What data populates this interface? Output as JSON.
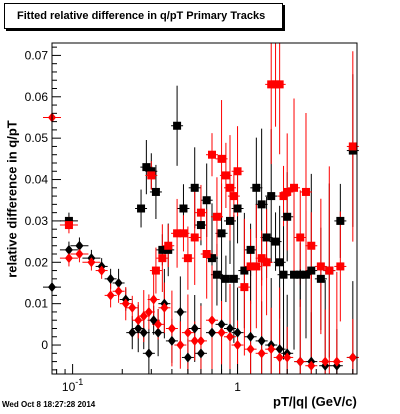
{
  "chart_data": {
    "type": "scatter",
    "title": "Fitted relative difference in q/pT  Primary Tracks",
    "xlabel": "pT/|q| (GeV/c)",
    "ylabel": "relative difference in q/pT",
    "x_scale": "log",
    "xlim": [
      0.075,
      5.3
    ],
    "ylim": [
      -0.007,
      0.073
    ],
    "x_tick_labels": [
      {
        "value": 0.1,
        "label": "10^-1"
      },
      {
        "value": 1,
        "label": "1"
      }
    ],
    "y_ticks": [
      0,
      0.01,
      0.02,
      0.03,
      0.04,
      0.05,
      0.06,
      0.07
    ],
    "y_tick_labels": [
      "0",
      "0.01",
      "0.02",
      "0.03",
      "0.04",
      "0.05",
      "0.06",
      "0.07"
    ],
    "series": [
      {
        "color": "#000000",
        "marker": "square",
        "points": [
          [
            0.095,
            0.03
          ],
          [
            0.26,
            0.033
          ],
          [
            0.28,
            0.043
          ],
          [
            0.3,
            0.042
          ],
          [
            0.32,
            0.037
          ],
          [
            0.35,
            0.023
          ],
          [
            0.38,
            0.023
          ],
          [
            0.43,
            0.053
          ],
          [
            0.47,
            0.033
          ],
          [
            0.55,
            0.038
          ],
          [
            0.6,
            0.029
          ],
          [
            0.65,
            0.035
          ],
          [
            0.7,
            0.021
          ],
          [
            0.75,
            0.017
          ],
          [
            0.8,
            0.027
          ],
          [
            0.85,
            0.016
          ],
          [
            0.9,
            0.03
          ],
          [
            0.95,
            0.016
          ],
          [
            1.0,
            0.033
          ],
          [
            1.1,
            0.018
          ],
          [
            1.2,
            0.023
          ],
          [
            1.3,
            0.038
          ],
          [
            1.4,
            0.034
          ],
          [
            1.5,
            0.026
          ],
          [
            1.6,
            0.036
          ],
          [
            1.7,
            0.025
          ],
          [
            1.8,
            0.02
          ],
          [
            1.9,
            0.017
          ],
          [
            2.0,
            0.031
          ],
          [
            2.2,
            0.017
          ],
          [
            2.4,
            0.017
          ],
          [
            2.6,
            0.017
          ],
          [
            2.8,
            0.018
          ],
          [
            3.2,
            0.016
          ],
          [
            3.6,
            0.018
          ],
          [
            4.2,
            0.03
          ],
          [
            5.0,
            0.047
          ]
        ]
      },
      {
        "color": "#ff0000",
        "marker": "square",
        "points": [
          [
            0.095,
            0.029
          ],
          [
            0.3,
            0.041
          ],
          [
            0.32,
            0.018
          ],
          [
            0.35,
            0.021
          ],
          [
            0.38,
            0.024
          ],
          [
            0.43,
            0.027
          ],
          [
            0.47,
            0.027
          ],
          [
            0.5,
            0.021
          ],
          [
            0.55,
            0.026
          ],
          [
            0.6,
            0.032
          ],
          [
            0.65,
            0.022
          ],
          [
            0.7,
            0.046
          ],
          [
            0.75,
            0.031
          ],
          [
            0.8,
            0.045
          ],
          [
            0.85,
            0.041
          ],
          [
            0.9,
            0.038
          ],
          [
            0.95,
            0.036
          ],
          [
            1.0,
            0.042
          ],
          [
            1.1,
            0.014
          ],
          [
            1.2,
            0.019
          ],
          [
            1.3,
            0.019
          ],
          [
            1.4,
            0.021
          ],
          [
            1.5,
            0.02
          ],
          [
            1.6,
            0.063
          ],
          [
            1.7,
            0.063
          ],
          [
            1.8,
            0.063
          ],
          [
            1.9,
            0.036
          ],
          [
            2.0,
            0.037
          ],
          [
            2.2,
            0.038
          ],
          [
            2.4,
            0.026
          ],
          [
            2.6,
            0.037
          ],
          [
            2.8,
            0.024
          ],
          [
            3.2,
            0.019
          ],
          [
            3.6,
            0.018
          ],
          [
            4.2,
            0.019
          ],
          [
            5.0,
            0.048
          ]
        ]
      },
      {
        "color": "#000000",
        "marker": "diamond",
        "points": [
          [
            0.075,
            0.014
          ],
          [
            0.095,
            0.023
          ],
          [
            0.11,
            0.024
          ],
          [
            0.13,
            0.021
          ],
          [
            0.15,
            0.019
          ],
          [
            0.17,
            0.016
          ],
          [
            0.19,
            0.015
          ],
          [
            0.21,
            0.011
          ],
          [
            0.23,
            0.003
          ],
          [
            0.25,
            0.004
          ],
          [
            0.27,
            0.003
          ],
          [
            0.29,
            -0.002
          ],
          [
            0.31,
            0.006
          ],
          [
            0.33,
            0.003
          ],
          [
            0.36,
            0.01
          ],
          [
            0.4,
            0.001
          ],
          [
            0.45,
            0.008
          ],
          [
            0.5,
            -0.003
          ],
          [
            0.55,
            0.004
          ],
          [
            0.6,
            -0.002
          ],
          [
            0.7,
            0.003
          ],
          [
            0.8,
            0.005
          ],
          [
            0.9,
            0.004
          ],
          [
            1.0,
            0.003
          ],
          [
            1.2,
            0.002
          ],
          [
            1.4,
            0.001
          ],
          [
            1.6,
            0.0
          ],
          [
            1.8,
            -0.001
          ],
          [
            2.0,
            -0.002
          ],
          [
            2.4,
            -0.004
          ],
          [
            2.8,
            -0.004
          ],
          [
            3.4,
            -0.005
          ],
          [
            4.0,
            -0.005
          ],
          [
            5.0,
            -0.003
          ]
        ]
      },
      {
        "color": "#ff0000",
        "marker": "diamond",
        "points": [
          [
            0.075,
            0.055
          ],
          [
            0.095,
            0.021
          ],
          [
            0.11,
            0.022
          ],
          [
            0.13,
            0.02
          ],
          [
            0.15,
            0.018
          ],
          [
            0.17,
            0.012
          ],
          [
            0.19,
            0.013
          ],
          [
            0.21,
            0.01
          ],
          [
            0.23,
            0.009
          ],
          [
            0.25,
            0.006
          ],
          [
            0.27,
            0.007
          ],
          [
            0.29,
            0.008
          ],
          [
            0.31,
            0.011
          ],
          [
            0.33,
            0.005
          ],
          [
            0.36,
            0.009
          ],
          [
            0.4,
            0.004
          ],
          [
            0.45,
            0.0
          ],
          [
            0.5,
            0.003
          ],
          [
            0.55,
            0.001
          ],
          [
            0.6,
            0.001
          ],
          [
            0.7,
            0.006
          ],
          [
            0.8,
            0.003
          ],
          [
            0.9,
            0.002
          ],
          [
            1.0,
            0.0
          ],
          [
            1.2,
            -0.001
          ],
          [
            1.4,
            -0.002
          ],
          [
            1.6,
            -0.001
          ],
          [
            1.8,
            -0.003
          ],
          [
            2.0,
            -0.003
          ],
          [
            2.4,
            -0.004
          ],
          [
            2.8,
            -0.005
          ],
          [
            3.4,
            -0.004
          ],
          [
            4.0,
            -0.004
          ],
          [
            5.0,
            -0.003
          ]
        ]
      }
    ]
  },
  "timestamp": "Wed Oct  8 18:27:28 2014"
}
